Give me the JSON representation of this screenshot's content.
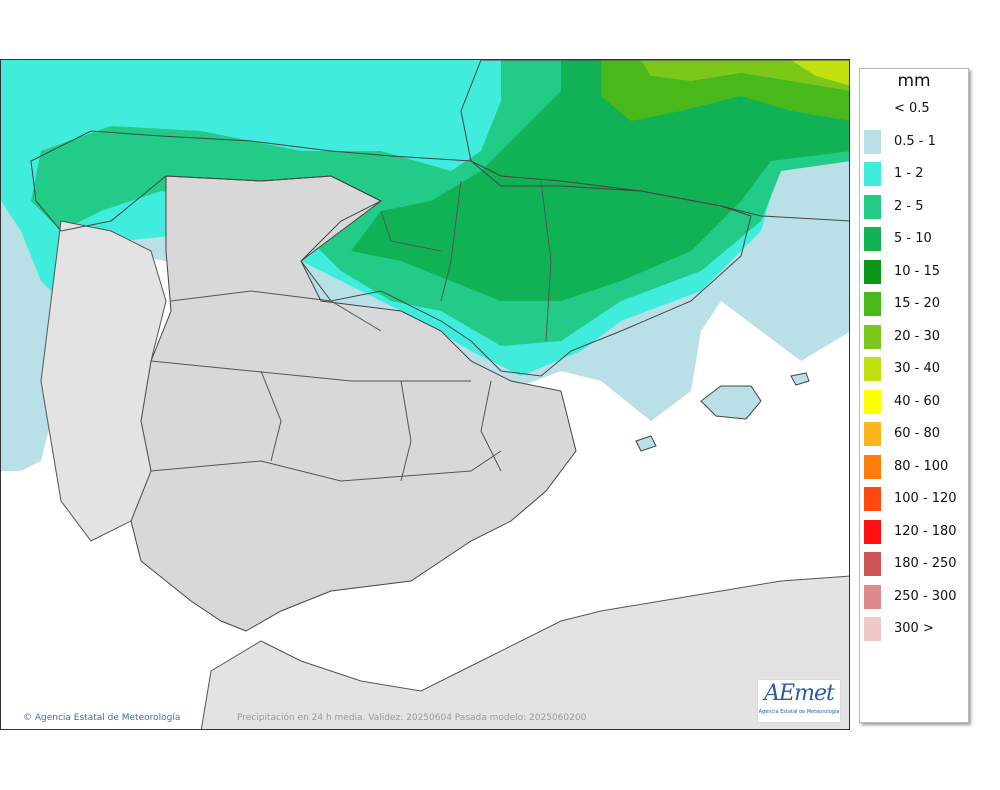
{
  "map": {
    "credit": "Agencia Estatal de Meteorología",
    "validity_text": "Precipitación en 24 h media. Validez: 20250604 Pasada modelo: 2025060200",
    "logo_text": "AEmet",
    "logo_subtitle": "Agencia Estatal de Meteorología"
  },
  "legend": {
    "unit": "mm",
    "classes": [
      {
        "label": "< 0.5",
        "color": "#ffffff"
      },
      {
        "label": "0.5 - 1",
        "color": "#b9e0e6"
      },
      {
        "label": "1 - 2",
        "color": "#40ecdc"
      },
      {
        "label": "2 - 5",
        "color": "#22cc88"
      },
      {
        "label": "5 - 10",
        "color": "#11b255"
      },
      {
        "label": "10 - 15",
        "color": "#0c9618"
      },
      {
        "label": "15 - 20",
        "color": "#48b81a"
      },
      {
        "label": "20 - 30",
        "color": "#7cc81a"
      },
      {
        "label": "30 - 40",
        "color": "#c0e010"
      },
      {
        "label": "40 - 60",
        "color": "#ffff00"
      },
      {
        "label": "60 - 80",
        "color": "#ffb61a"
      },
      {
        "label": "80 - 100",
        "color": "#ff7d0d"
      },
      {
        "label": "100 - 120",
        "color": "#ff4a0d"
      },
      {
        "label": "120 - 180",
        "color": "#ff0f0f"
      },
      {
        "label": "180 - 250",
        "color": "#cc5555"
      },
      {
        "label": "250 - 300",
        "color": "#dd8a8a"
      },
      {
        "label": "300 >",
        "color": "#f0c8c8"
      }
    ]
  }
}
